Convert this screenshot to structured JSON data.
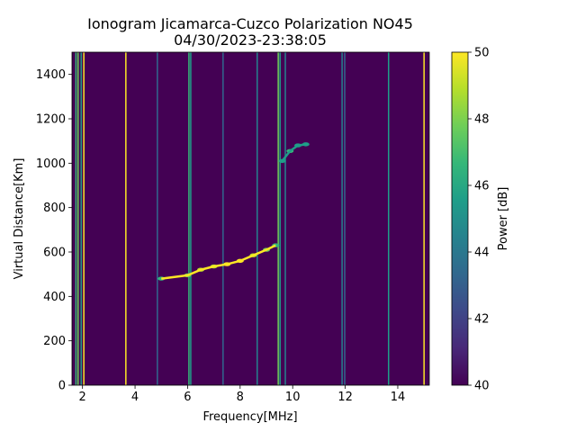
{
  "chart_data": {
    "type": "heatmap",
    "title": "Ionogram Jicamarca-Cuzco Polarization NO45",
    "subtitle": "04/30/2023-23:38:05",
    "xlabel": "Frequency[MHz]",
    "ylabel": "Virtual Distance[Km]",
    "xlim": [
      1.6,
      15.2
    ],
    "ylim": [
      0,
      1500
    ],
    "xticks": [
      2,
      4,
      6,
      8,
      10,
      12,
      14
    ],
    "yticks": [
      0,
      200,
      400,
      600,
      800,
      1000,
      1200,
      1400
    ],
    "colorbar": {
      "label": "Power [dB]",
      "min": 40,
      "max": 50,
      "ticks": [
        40,
        42,
        44,
        46,
        48,
        50
      ],
      "colors": [
        "#440154",
        "#482878",
        "#3e4989",
        "#31688e",
        "#26828e",
        "#1f9e89",
        "#35b779",
        "#6ece58",
        "#b5de2b",
        "#fde725"
      ]
    },
    "background_db": 40,
    "vertical_lines": [
      {
        "freq": 1.75,
        "ymin": 0,
        "ymax": 1500,
        "db": 47
      },
      {
        "freq": 1.83,
        "ymin": 0,
        "ymax": 1500,
        "db": 48
      },
      {
        "freq": 1.95,
        "ymin": 0,
        "ymax": 1500,
        "db": 45
      },
      {
        "freq": 2.05,
        "ymin": 0,
        "ymax": 1500,
        "db": 50
      },
      {
        "freq": 3.65,
        "ymin": 0,
        "ymax": 1500,
        "db": 50
      },
      {
        "freq": 4.85,
        "ymin": 0,
        "ymax": 1500,
        "db": 43
      },
      {
        "freq": 6.05,
        "ymin": 0,
        "ymax": 1500,
        "db": 47
      },
      {
        "freq": 6.12,
        "ymin": 0,
        "ymax": 1500,
        "db": 45
      },
      {
        "freq": 7.35,
        "ymin": 0,
        "ymax": 1500,
        "db": 43
      },
      {
        "freq": 8.65,
        "ymin": 0,
        "ymax": 1500,
        "db": 44
      },
      {
        "freq": 9.45,
        "ymin": 0,
        "ymax": 1500,
        "db": 48
      },
      {
        "freq": 9.52,
        "ymin": 0,
        "ymax": 1500,
        "db": 46
      },
      {
        "freq": 9.72,
        "ymin": 0,
        "ymax": 1500,
        "db": 44
      },
      {
        "freq": 11.88,
        "ymin": 0,
        "ymax": 1500,
        "db": 44
      },
      {
        "freq": 11.98,
        "ymin": 0,
        "ymax": 1500,
        "db": 43
      },
      {
        "freq": 13.65,
        "ymin": 0,
        "ymax": 1500,
        "db": 45
      },
      {
        "freq": 15.0,
        "ymin": 0,
        "ymax": 1500,
        "db": 50
      }
    ],
    "echo_trace": [
      {
        "freq": 5.0,
        "km": 480,
        "db": 47
      },
      {
        "freq": 6.0,
        "km": 495,
        "db": 48
      },
      {
        "freq": 6.5,
        "km": 520,
        "db": 49
      },
      {
        "freq": 7.0,
        "km": 535,
        "db": 49
      },
      {
        "freq": 7.5,
        "km": 545,
        "db": 50
      },
      {
        "freq": 8.0,
        "km": 560,
        "db": 50
      },
      {
        "freq": 8.5,
        "km": 585,
        "db": 49
      },
      {
        "freq": 9.0,
        "km": 610,
        "db": 48
      },
      {
        "freq": 9.35,
        "km": 630,
        "db": 47
      }
    ],
    "echo_trace_2": [
      {
        "freq": 9.6,
        "km": 1010,
        "db": 46
      },
      {
        "freq": 9.9,
        "km": 1055,
        "db": 47
      },
      {
        "freq": 10.2,
        "km": 1080,
        "db": 46
      },
      {
        "freq": 10.5,
        "km": 1085,
        "db": 45
      }
    ]
  }
}
